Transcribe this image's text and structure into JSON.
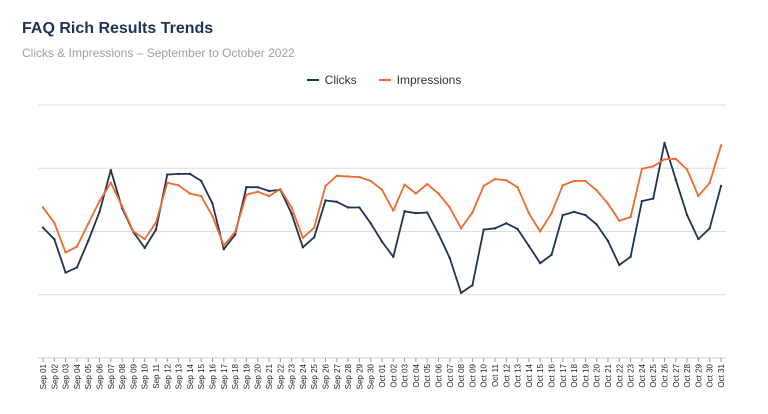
{
  "header": {
    "title": "FAQ Rich Results Trends",
    "subtitle": "Clicks & Impressions – September to October 2022"
  },
  "colors": {
    "clicks": "#1f3352",
    "impressions": "#ef6a2e",
    "grid": "#dddddd"
  },
  "chart_data": {
    "type": "line",
    "title": "FAQ Rich Results Trends",
    "subtitle": "Clicks & Impressions – September to October 2022",
    "xlabel": "",
    "ylabel": "",
    "ylim": [
      0,
      4
    ],
    "y_tick_labels_visible": false,
    "grid": true,
    "legend": "top-center",
    "categories": [
      "Sep 01",
      "Sep 02",
      "Sep 03",
      "Sep 04",
      "Sep 05",
      "Sep 06",
      "Sep 07",
      "Sep 08",
      "Sep 09",
      "Sep 10",
      "Sep 11",
      "Sep 12",
      "Sep 13",
      "Sep 14",
      "Sep 15",
      "Sep 16",
      "Sep 17",
      "Sep 18",
      "Sep 19",
      "Sep 20",
      "Sep 21",
      "Sep 22",
      "Sep 23",
      "Sep 24",
      "Sep 25",
      "Sep 26",
      "Sep 27",
      "Sep 28",
      "Sep 29",
      "Sep 30",
      "Oct 01",
      "Oct 02",
      "Oct 03",
      "Oct 04",
      "Oct 05",
      "Oct 06",
      "Oct 07",
      "Oct 08",
      "Oct 09",
      "Oct 10",
      "Oct 11",
      "Oct 12",
      "Oct 13",
      "Oct 14",
      "Oct 15",
      "Oct 16",
      "Oct 17",
      "Oct 18",
      "Oct 19",
      "Oct 20",
      "Oct 21",
      "Oct 22",
      "Oct 23",
      "Oct 24",
      "Oct 25",
      "Oct 26",
      "Oct 27",
      "Oct 28",
      "Oct 29",
      "Oct 30",
      "Oct 31"
    ],
    "series": [
      {
        "name": "Clicks",
        "color": "#1f3352",
        "values": [
          2.06,
          1.88,
          1.35,
          1.43,
          1.85,
          2.31,
          2.97,
          2.37,
          1.99,
          1.74,
          2.03,
          2.9,
          2.91,
          2.91,
          2.8,
          2.44,
          1.72,
          1.95,
          2.7,
          2.7,
          2.64,
          2.66,
          2.28,
          1.75,
          1.91,
          2.49,
          2.47,
          2.38,
          2.38,
          2.13,
          1.84,
          1.6,
          2.32,
          2.29,
          2.3,
          1.96,
          1.58,
          1.03,
          1.15,
          2.03,
          2.05,
          2.13,
          2.04,
          1.77,
          1.5,
          1.63,
          2.26,
          2.31,
          2.26,
          2.11,
          1.85,
          1.47,
          1.6,
          2.48,
          2.52,
          3.4,
          2.82,
          2.26,
          1.88,
          2.05,
          2.72
        ]
      },
      {
        "name": "Impressions",
        "color": "#ef6a2e",
        "values": [
          2.38,
          2.14,
          1.67,
          1.76,
          2.12,
          2.48,
          2.77,
          2.4,
          2.0,
          1.88,
          2.14,
          2.77,
          2.73,
          2.6,
          2.56,
          2.24,
          1.78,
          1.99,
          2.58,
          2.63,
          2.56,
          2.67,
          2.38,
          1.9,
          2.06,
          2.72,
          2.88,
          2.87,
          2.86,
          2.8,
          2.66,
          2.33,
          2.74,
          2.6,
          2.75,
          2.6,
          2.38,
          2.05,
          2.3,
          2.72,
          2.83,
          2.81,
          2.7,
          2.29,
          2.0,
          2.29,
          2.73,
          2.8,
          2.8,
          2.65,
          2.44,
          2.17,
          2.23,
          2.99,
          3.03,
          3.14,
          3.15,
          2.98,
          2.56,
          2.77,
          3.36
        ]
      }
    ]
  }
}
